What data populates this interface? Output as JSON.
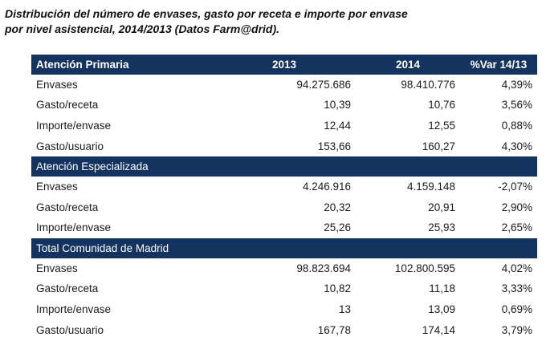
{
  "title": {
    "line1": "Distribución del número de envases, gasto por receta e importe por envase",
    "line2": "por nivel asistencial, 2014/2013 (Datos Farm@drid)."
  },
  "columns": {
    "y2013": "2013",
    "y2014": "2014",
    "var": "%Var 14/13"
  },
  "sections": [
    {
      "name": "Atención Primaria",
      "rows": [
        {
          "label": "Envases",
          "v2013": "94.275.686",
          "v2014": "98.410.776",
          "var": "4,39%"
        },
        {
          "label": "Gasto/receta",
          "v2013": "10,39",
          "v2014": "10,76",
          "var": "3,56%"
        },
        {
          "label": "Importe/envase",
          "v2013": "12,44",
          "v2014": "12,55",
          "var": "0,88%"
        },
        {
          "label": "Gasto/usuario",
          "v2013": "153,66",
          "v2014": "160,27",
          "var": "4,30%"
        }
      ]
    },
    {
      "name": "Atención Especializada",
      "rows": [
        {
          "label": "Envases",
          "v2013": "4.246.916",
          "v2014": "4.159.148",
          "var": "-2,07%"
        },
        {
          "label": "Gasto/receta",
          "v2013": "20,32",
          "v2014": "20,91",
          "var": "2,90%"
        },
        {
          "label": "Importe/envase",
          "v2013": "25,26",
          "v2014": "25,93",
          "var": "2,65%"
        }
      ]
    },
    {
      "name": "Total Comunidad de Madrid",
      "rows": [
        {
          "label": "Envases",
          "v2013": "98.823.694",
          "v2014": "102.800.595",
          "var": "4,02%"
        },
        {
          "label": "Gasto/receta",
          "v2013": "10,82",
          "v2014": "11,18",
          "var": "3,33%"
        },
        {
          "label": "Importe/envase",
          "v2013": "13",
          "v2014": "13,09",
          "var": "0,69%"
        },
        {
          "label": "Gasto/usuario",
          "v2013": "167,78",
          "v2014": "174,14",
          "var": "3,79%"
        }
      ]
    }
  ],
  "colors": {
    "header_bg": "#14335e",
    "header_text": "#ffffff",
    "text": "#1a1a1a"
  }
}
